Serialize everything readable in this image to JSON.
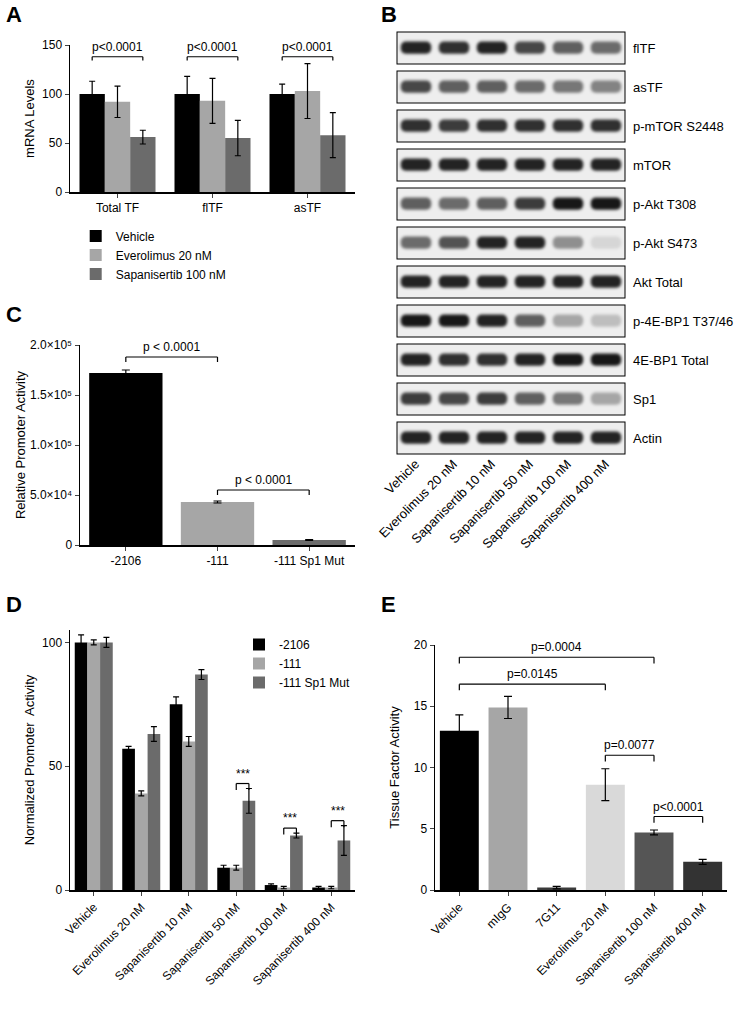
{
  "chart_data": [
    {
      "panel": "A",
      "type": "bar",
      "categories": [
        "Total TF",
        "flTF",
        "asTF"
      ],
      "series": [
        {
          "name": "Vehicle",
          "color": "#000000",
          "values": [
            100,
            100,
            100
          ],
          "errors": [
            13,
            18,
            10
          ]
        },
        {
          "name": "Everolimus 20 nM",
          "color": "#a6a6a6",
          "values": [
            92,
            93,
            103
          ],
          "errors": [
            16,
            23,
            28
          ]
        },
        {
          "name": "Sapanisertib 100 nM",
          "color": "#6b6b6b",
          "values": [
            56,
            55,
            58
          ],
          "errors": [
            7,
            18,
            23
          ]
        }
      ],
      "y_label": "mRNA Levels",
      "ylim": [
        0,
        150
      ],
      "yticks": [
        0,
        50,
        100,
        150
      ],
      "grid": false,
      "legend": "bottom left",
      "comparisons": [
        {
          "category": "Total TF",
          "between": [
            "Vehicle",
            "Sapanisertib 100 nM"
          ],
          "y": 138,
          "label": "p<0.0001"
        },
        {
          "category": "flTF",
          "between": [
            "Vehicle",
            "Sapanisertib 100 nM"
          ],
          "y": 138,
          "label": "p<0.0001"
        },
        {
          "category": "asTF",
          "between": [
            "Vehicle",
            "Sapanisertib 100 nM"
          ],
          "y": 138,
          "label": "p<0.0001"
        }
      ]
    },
    {
      "panel": "C",
      "type": "bar",
      "categories": [
        "-2106",
        "-111",
        "-111 Sp1 Mut"
      ],
      "values": [
        172000,
        43000,
        5000
      ],
      "errors": [
        3000,
        1000,
        500
      ],
      "colors": [
        "#000000",
        "#a6a6a6",
        "#6b6b6b"
      ],
      "y_label": "Relative Promoter Activity",
      "ylim": [
        0,
        200000
      ],
      "yticks": [
        0,
        {
          "value": 50000,
          "label": "5.0×10⁴"
        },
        {
          "value": 100000,
          "label": "1.0×10⁵"
        },
        {
          "value": 150000,
          "label": "1.5×10⁵"
        },
        {
          "value": 200000,
          "label": "2.0×10⁵"
        }
      ],
      "grid": false,
      "comparisons": [
        {
          "between": [
            "-2106",
            "-111"
          ],
          "y": 188000,
          "label": "p < 0.0001"
        },
        {
          "between": [
            "-111",
            "-111 Sp1 Mut"
          ],
          "y": 55000,
          "label": "p < 0.0001"
        }
      ]
    },
    {
      "panel": "D",
      "type": "bar",
      "categories": [
        "Vehicle",
        "Everolimus 20 nM",
        "Sapanisertib 10 nM",
        "Sapanisertib 50 nM",
        "Sapanisertib 100 nM",
        "Sapanisertib 400 nM"
      ],
      "series": [
        {
          "name": "-2106",
          "color": "#000000",
          "values": [
            100,
            57,
            75,
            9,
            2,
            1
          ],
          "errors": [
            3,
            1,
            3,
            1,
            0.5,
            0.5
          ]
        },
        {
          "name": "-111",
          "color": "#a6a6a6",
          "values": [
            100,
            39,
            60,
            9,
            1,
            1
          ],
          "errors": [
            1,
            1,
            2,
            1,
            0.5,
            0.5
          ]
        },
        {
          "name": "-111 Sp1 Mut",
          "color": "#6b6b6b",
          "values": [
            100,
            63,
            87,
            36,
            22,
            20
          ],
          "errors": [
            2,
            3,
            2,
            5,
            1,
            6
          ]
        }
      ],
      "y_label": "Normalized Promoter  Activity",
      "ylim": [
        0,
        105
      ],
      "yticks": [
        0,
        50,
        100
      ],
      "grid": false,
      "legend": "top right",
      "comparisons": [
        {
          "category": "Sapanisertib 50 nM",
          "between": [
            "-111",
            "-111 Sp1 Mut"
          ],
          "y": 43,
          "label": "***"
        },
        {
          "category": "Sapanisertib 100 nM",
          "between": [
            "-111",
            "-111 Sp1 Mut"
          ],
          "y": 25,
          "label": "***"
        },
        {
          "category": "Sapanisertib 400 nM",
          "between": [
            "-111",
            "-111 Sp1 Mut"
          ],
          "y": 28,
          "label": "***"
        }
      ]
    },
    {
      "panel": "E",
      "type": "bar",
      "categories": [
        "Vehicle",
        "mIgG",
        "7G11",
        "Everolimus 20 nM",
        "Sapanisertib 100 nM",
        "Sapanisertib 400 nM"
      ],
      "values": [
        13,
        14.9,
        0.2,
        8.6,
        4.7,
        2.3
      ],
      "errors": [
        1.3,
        0.9,
        0.1,
        1.3,
        0.2,
        0.2
      ],
      "colors": [
        "#000000",
        "#a6a6a6",
        "#3a3a3a",
        "#d9d9d9",
        "#555555",
        "#333333"
      ],
      "y_label": "Tissue Factor Activity",
      "ylim": [
        0,
        20
      ],
      "yticks": [
        0,
        5,
        10,
        15,
        20
      ],
      "grid": false,
      "comparisons": [
        {
          "between": [
            "Vehicle",
            "Sapanisertib 100 nM"
          ],
          "y": 19,
          "label": "p=0.0004"
        },
        {
          "between": [
            "Vehicle",
            "Everolimus 20 nM"
          ],
          "y": 16.8,
          "label": "p=0.0145"
        },
        {
          "between": [
            "Everolimus 20 nM",
            "Sapanisertib 100 nM"
          ],
          "y": 11,
          "label": "p=0.0077"
        },
        {
          "between": [
            "Sapanisertib 100 nM",
            "Sapanisertib 400 nM"
          ],
          "y": 6,
          "label": "p<0.0001"
        }
      ]
    }
  ],
  "blot": {
    "panel": "B",
    "lanes": [
      "Vehicle",
      "Everolimus 20 nM",
      "Sapanisertib 10 nM",
      "Sapanisertib 50 nM",
      "Sapanisertib 100 nM",
      "Sapanisertib 400 nM"
    ],
    "rows": [
      {
        "label": "flTF",
        "intensity": [
          0.85,
          0.8,
          0.85,
          0.7,
          0.6,
          0.55
        ]
      },
      {
        "label": "asTF",
        "intensity": [
          0.7,
          0.6,
          0.6,
          0.55,
          0.5,
          0.45
        ]
      },
      {
        "label": "p-mTOR S2448",
        "intensity": [
          0.8,
          0.75,
          0.8,
          0.8,
          0.8,
          0.8
        ]
      },
      {
        "label": "mTOR",
        "intensity": [
          0.85,
          0.85,
          0.85,
          0.85,
          0.85,
          0.85
        ]
      },
      {
        "label": "p-Akt T308",
        "intensity": [
          0.6,
          0.55,
          0.6,
          0.75,
          0.9,
          0.9
        ]
      },
      {
        "label": "p-Akt S473",
        "intensity": [
          0.55,
          0.65,
          0.85,
          0.85,
          0.4,
          0.1
        ]
      },
      {
        "label": "Akt Total",
        "intensity": [
          0.85,
          0.85,
          0.85,
          0.85,
          0.85,
          0.85
        ]
      },
      {
        "label": "p-4E-BP1 T37/46",
        "intensity": [
          0.9,
          0.9,
          0.85,
          0.6,
          0.3,
          0.2
        ]
      },
      {
        "label": "4E-BP1 Total",
        "intensity": [
          0.85,
          0.8,
          0.8,
          0.85,
          0.9,
          0.9
        ]
      },
      {
        "label": "Sp1",
        "intensity": [
          0.75,
          0.7,
          0.75,
          0.6,
          0.5,
          0.3
        ]
      },
      {
        "label": "Actin",
        "intensity": [
          0.85,
          0.85,
          0.85,
          0.85,
          0.85,
          0.85
        ]
      }
    ]
  }
}
